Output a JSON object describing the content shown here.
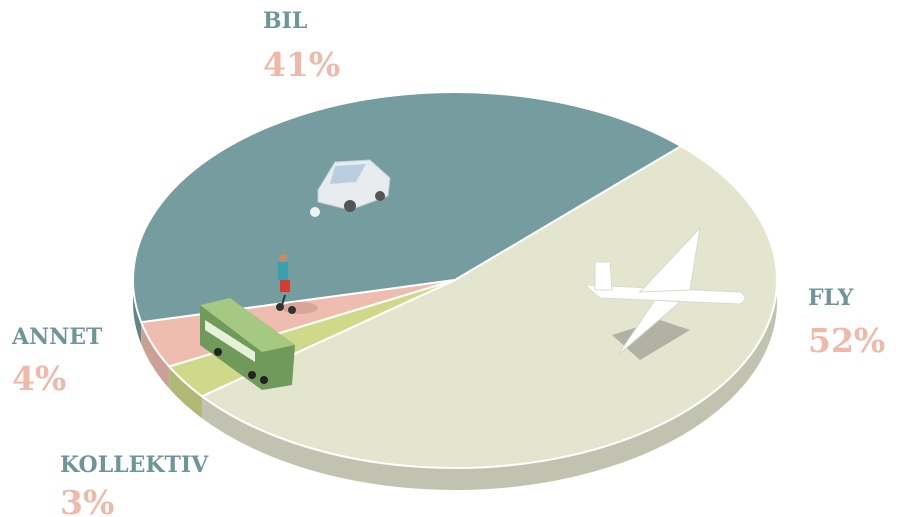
{
  "chart_data": {
    "type": "pie",
    "categories": [
      "BIL",
      "FLY",
      "KOLLEKTIV",
      "ANNET"
    ],
    "values": [
      41,
      52,
      3,
      4
    ],
    "value_labels": [
      "41%",
      "52%",
      "3%",
      "4%"
    ],
    "colors": [
      "#759c9f",
      "#e3e5cf",
      "#cfd98a",
      "#efbcb0"
    ]
  }
}
